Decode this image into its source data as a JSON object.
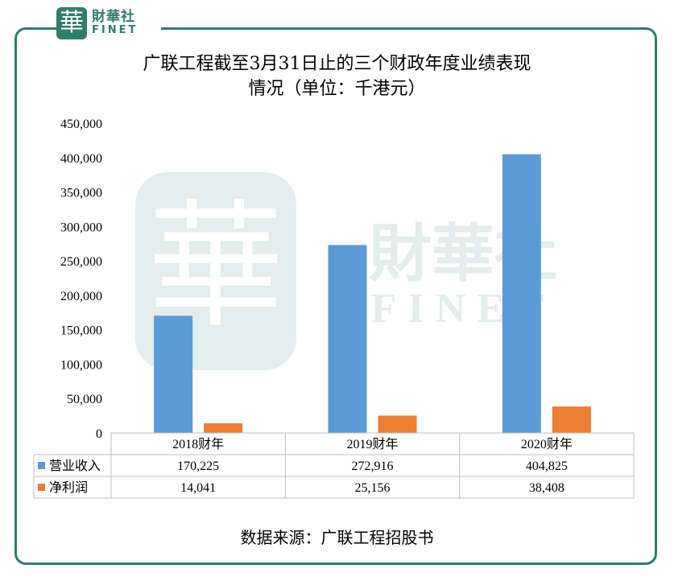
{
  "logo": {
    "mark": "華",
    "name_cn": "財華社",
    "name_en": "FINET"
  },
  "title_line1": "广联工程截至3月31日止的三个财政年度业绩表现",
  "title_line2": "情况（单位：千港元）",
  "source": "数据来源：广联工程招股书",
  "watermark": {
    "cn": "財華社",
    "en": "FINET",
    "mark": "華"
  },
  "colors": {
    "revenue": "#5b9bd5",
    "profit": "#ed7d31",
    "brand": "#2e7d6b"
  },
  "chart_data": {
    "type": "bar",
    "categories": [
      "2018财年",
      "2019财年",
      "2020财年"
    ],
    "series": [
      {
        "name": "营业收入",
        "values": [
          170225,
          272916,
          404825
        ],
        "labels": [
          "170,225",
          "272,916",
          "404,825"
        ]
      },
      {
        "name": "净利润",
        "values": [
          14041,
          25156,
          38408
        ],
        "labels": [
          "14,041",
          "25,156",
          "38,408"
        ]
      }
    ],
    "ylim": [
      0,
      450000
    ],
    "yticks": [
      "0",
      "50,000",
      "100,000",
      "150,000",
      "200,000",
      "250,000",
      "300,000",
      "350,000",
      "400,000",
      "450,000"
    ],
    "grid": false,
    "data_table": true
  }
}
